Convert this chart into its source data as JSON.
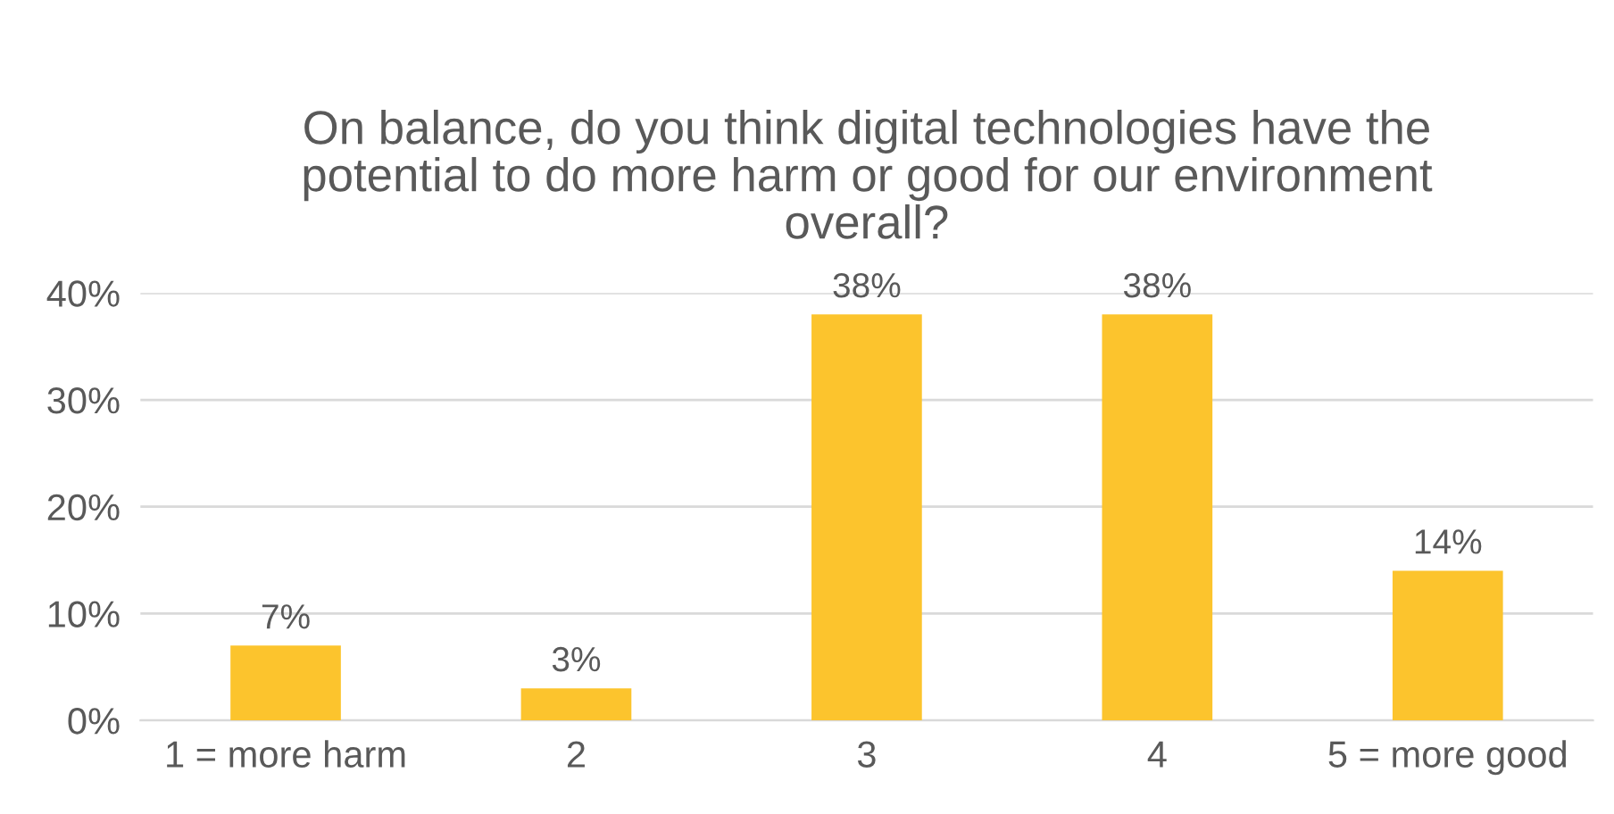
{
  "chart_data": {
    "type": "bar",
    "title": "On balance, do you think digital technologies have the\npotential to do more harm or good for our environment\noverall?",
    "categories": [
      "1 = more harm",
      "2",
      "3",
      "4",
      "5 = more good"
    ],
    "values": [
      7,
      3,
      38,
      38,
      14
    ],
    "value_labels": [
      "7%",
      "3%",
      "38%",
      "38%",
      "14%"
    ],
    "color": "#fcc42d",
    "ylim": [
      0,
      40
    ],
    "yticks": [
      {
        "value": 0,
        "label": "0%"
      },
      {
        "value": 10,
        "label": "10%"
      },
      {
        "value": 20,
        "label": "20%"
      },
      {
        "value": 30,
        "label": "30%"
      },
      {
        "value": 40,
        "label": "40%"
      }
    ],
    "grid": "y"
  }
}
